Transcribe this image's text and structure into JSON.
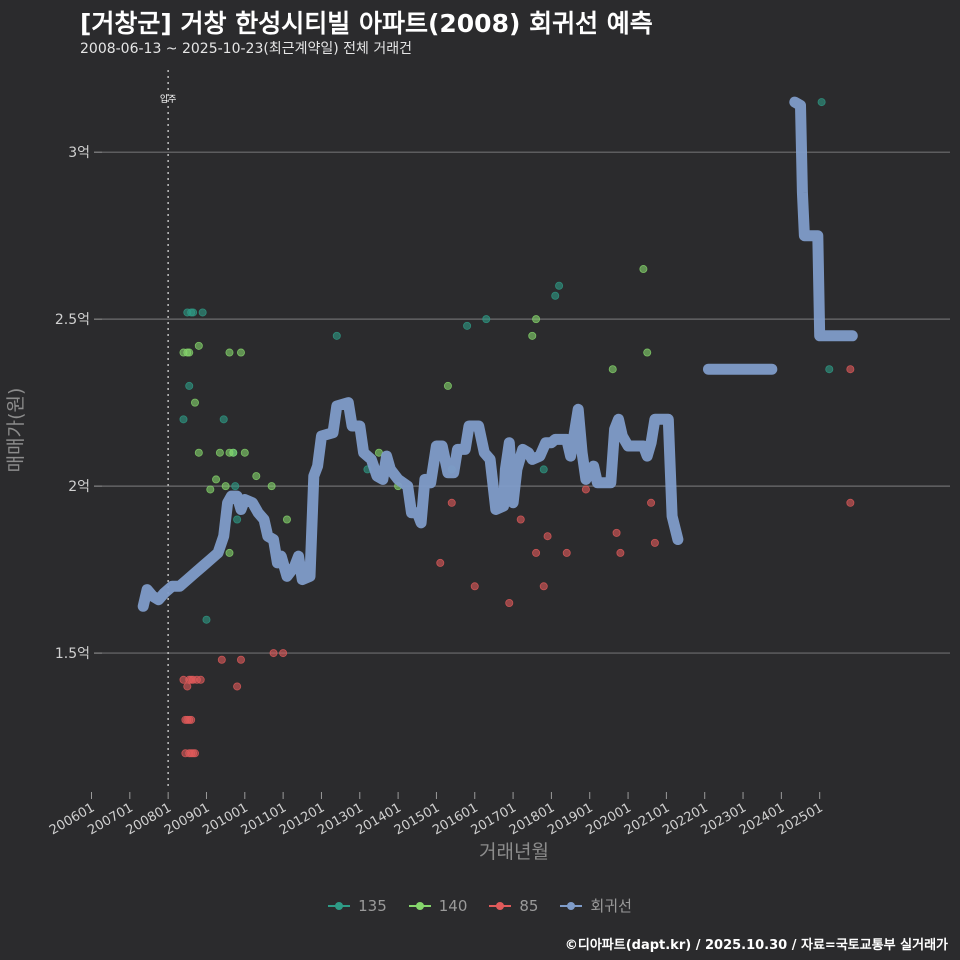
{
  "title": "[거창군] 거창 한성시티빌 아파트(2008) 회귀선 예측",
  "subtitle": "2008-06-13 ~ 2025-10-23(최근계약일) 전체 거래건",
  "credit": "©디아파트(dapt.kr) / 2025.10.30 / 자료=국토교통부 실거래가",
  "chart_data": {
    "type": "scatter",
    "title": "[거창군] 거창 한성시티빌 아파트(2008) 회귀선 예측",
    "xlabel": "거래년월",
    "ylabel": "매매가(원)",
    "x_ticks": [
      "200601",
      "200701",
      "200801",
      "200901",
      "201001",
      "201101",
      "201201",
      "201301",
      "201401",
      "201501",
      "201601",
      "201701",
      "201801",
      "201901",
      "202001",
      "202101",
      "202201",
      "202301",
      "202401",
      "202501"
    ],
    "y_ticks": [
      {
        "value": 1.5,
        "label": "1.5억"
      },
      {
        "value": 2.0,
        "label": "2억"
      },
      {
        "value": 2.5,
        "label": "2.5억"
      },
      {
        "value": 3.0,
        "label": "3억"
      }
    ],
    "xlim": [
      2005.7,
      2028.4
    ],
    "ylim": [
      1.09,
      3.27
    ],
    "vline": {
      "x": 2008.0,
      "label": "입주"
    },
    "colors": {
      "135": "#2e9b86",
      "140": "#86d66c",
      "85": "#e05a5a",
      "회귀선": "#7f9cc9"
    },
    "series": [
      {
        "name": "135",
        "points": [
          [
            2008.4,
            2.2
          ],
          [
            2008.5,
            2.52
          ],
          [
            2008.55,
            2.3
          ],
          [
            2008.6,
            2.52
          ],
          [
            2008.65,
            2.52
          ],
          [
            2008.9,
            2.52
          ],
          [
            2009.0,
            1.6
          ],
          [
            2009.45,
            2.2
          ],
          [
            2009.7,
            2.1
          ],
          [
            2009.8,
            1.9
          ],
          [
            2009.75,
            2.0
          ],
          [
            2012.4,
            2.45
          ],
          [
            2013.2,
            2.05
          ],
          [
            2015.4,
            2.05
          ],
          [
            2015.8,
            2.48
          ],
          [
            2016.3,
            2.5
          ],
          [
            2017.8,
            2.05
          ],
          [
            2018.1,
            2.57
          ],
          [
            2018.2,
            2.6
          ],
          [
            2025.25,
            2.35
          ],
          [
            2025.05,
            3.15
          ]
        ]
      },
      {
        "name": "140",
        "points": [
          [
            2008.4,
            2.4
          ],
          [
            2008.5,
            2.4
          ],
          [
            2008.55,
            2.4
          ],
          [
            2008.8,
            2.42
          ],
          [
            2008.7,
            2.25
          ],
          [
            2008.8,
            2.1
          ],
          [
            2009.1,
            1.99
          ],
          [
            2009.25,
            2.02
          ],
          [
            2009.35,
            2.1
          ],
          [
            2009.5,
            2.0
          ],
          [
            2009.6,
            2.1
          ],
          [
            2009.6,
            1.8
          ],
          [
            2009.6,
            2.4
          ],
          [
            2009.7,
            2.1
          ],
          [
            2009.9,
            2.4
          ],
          [
            2010.0,
            2.1
          ],
          [
            2010.3,
            2.03
          ],
          [
            2010.7,
            2.0
          ],
          [
            2011.1,
            1.9
          ],
          [
            2013.5,
            2.1
          ],
          [
            2014.0,
            2.0
          ],
          [
            2015.3,
            2.3
          ],
          [
            2017.5,
            2.45
          ],
          [
            2017.6,
            2.5
          ],
          [
            2019.6,
            2.35
          ],
          [
            2020.4,
            2.65
          ],
          [
            2020.5,
            2.4
          ]
        ]
      },
      {
        "name": "85",
        "points": [
          [
            2008.4,
            1.42
          ],
          [
            2008.45,
            1.3
          ],
          [
            2008.5,
            1.3
          ],
          [
            2008.55,
            1.3
          ],
          [
            2008.6,
            1.3
          ],
          [
            2008.45,
            1.2
          ],
          [
            2008.55,
            1.2
          ],
          [
            2008.6,
            1.2
          ],
          [
            2008.65,
            1.2
          ],
          [
            2008.7,
            1.2
          ],
          [
            2008.5,
            1.4
          ],
          [
            2008.55,
            1.42
          ],
          [
            2008.6,
            1.42
          ],
          [
            2008.65,
            1.42
          ],
          [
            2008.75,
            1.42
          ],
          [
            2008.85,
            1.42
          ],
          [
            2009.4,
            1.48
          ],
          [
            2009.8,
            1.4
          ],
          [
            2009.9,
            1.48
          ],
          [
            2010.75,
            1.5
          ],
          [
            2011.0,
            1.5
          ],
          [
            2015.1,
            1.77
          ],
          [
            2015.4,
            1.95
          ],
          [
            2016.0,
            1.7
          ],
          [
            2016.9,
            1.65
          ],
          [
            2017.2,
            1.9
          ],
          [
            2017.6,
            1.8
          ],
          [
            2017.8,
            1.7
          ],
          [
            2017.9,
            1.85
          ],
          [
            2018.4,
            1.8
          ],
          [
            2018.9,
            1.99
          ],
          [
            2019.7,
            1.86
          ],
          [
            2019.8,
            1.8
          ],
          [
            2020.6,
            1.95
          ],
          [
            2020.7,
            1.83
          ],
          [
            2025.8,
            2.35
          ],
          [
            2025.8,
            1.95
          ]
        ]
      }
    ],
    "regression": {
      "name": "회귀선",
      "segments": [
        [
          [
            2007.35,
            1.64
          ],
          [
            2007.45,
            1.69
          ],
          [
            2007.6,
            1.67
          ],
          [
            2007.75,
            1.66
          ],
          [
            2007.9,
            1.68
          ],
          [
            2008.1,
            1.7
          ],
          [
            2008.3,
            1.7
          ],
          [
            2008.5,
            1.72
          ],
          [
            2008.7,
            1.74
          ],
          [
            2008.9,
            1.76
          ],
          [
            2009.1,
            1.78
          ],
          [
            2009.3,
            1.8
          ],
          [
            2009.45,
            1.85
          ],
          [
            2009.55,
            1.95
          ],
          [
            2009.65,
            1.97
          ],
          [
            2009.8,
            1.97
          ],
          [
            2009.9,
            1.93
          ],
          [
            2010.0,
            1.96
          ],
          [
            2010.2,
            1.95
          ],
          [
            2010.35,
            1.92
          ],
          [
            2010.5,
            1.9
          ],
          [
            2010.6,
            1.85
          ],
          [
            2010.75,
            1.84
          ],
          [
            2010.85,
            1.77
          ],
          [
            2010.95,
            1.79
          ],
          [
            2011.1,
            1.73
          ],
          [
            2011.3,
            1.76
          ],
          [
            2011.4,
            1.79
          ],
          [
            2011.5,
            1.72
          ],
          [
            2011.7,
            1.73
          ],
          [
            2011.8,
            2.03
          ],
          [
            2011.9,
            2.06
          ],
          [
            2012.0,
            2.15
          ],
          [
            2012.3,
            2.16
          ],
          [
            2012.4,
            2.24
          ],
          [
            2012.7,
            2.25
          ],
          [
            2012.8,
            2.18
          ],
          [
            2013.0,
            2.18
          ],
          [
            2013.1,
            2.1
          ],
          [
            2013.3,
            2.08
          ],
          [
            2013.45,
            2.03
          ],
          [
            2013.6,
            2.02
          ],
          [
            2013.7,
            2.09
          ],
          [
            2013.8,
            2.05
          ],
          [
            2014.0,
            2.02
          ],
          [
            2014.25,
            2.0
          ],
          [
            2014.35,
            1.92
          ],
          [
            2014.5,
            1.92
          ],
          [
            2014.6,
            1.89
          ],
          [
            2014.7,
            2.02
          ],
          [
            2014.85,
            2.01
          ],
          [
            2015.0,
            2.12
          ],
          [
            2015.15,
            2.12
          ],
          [
            2015.3,
            2.04
          ],
          [
            2015.45,
            2.04
          ],
          [
            2015.55,
            2.11
          ],
          [
            2015.75,
            2.11
          ],
          [
            2015.85,
            2.18
          ],
          [
            2016.1,
            2.18
          ],
          [
            2016.25,
            2.1
          ],
          [
            2016.4,
            2.08
          ],
          [
            2016.55,
            1.93
          ],
          [
            2016.75,
            1.94
          ],
          [
            2016.8,
            2.05
          ],
          [
            2016.9,
            2.13
          ],
          [
            2017.0,
            1.95
          ],
          [
            2017.1,
            2.05
          ],
          [
            2017.25,
            2.11
          ],
          [
            2017.4,
            2.1
          ],
          [
            2017.5,
            2.08
          ],
          [
            2017.7,
            2.09
          ],
          [
            2017.85,
            2.13
          ],
          [
            2018.0,
            2.13
          ],
          [
            2018.1,
            2.14
          ],
          [
            2018.4,
            2.14
          ],
          [
            2018.5,
            2.09
          ],
          [
            2018.6,
            2.16
          ],
          [
            2018.7,
            2.23
          ],
          [
            2018.8,
            2.1
          ],
          [
            2018.9,
            2.02
          ],
          [
            2019.1,
            2.06
          ],
          [
            2019.2,
            2.01
          ],
          [
            2019.4,
            2.01
          ],
          [
            2019.55,
            2.01
          ],
          [
            2019.65,
            2.17
          ],
          [
            2019.75,
            2.2
          ],
          [
            2019.85,
            2.15
          ],
          [
            2020.0,
            2.12
          ],
          [
            2020.4,
            2.12
          ],
          [
            2020.5,
            2.09
          ],
          [
            2020.6,
            2.13
          ],
          [
            2020.7,
            2.2
          ],
          [
            2021.05,
            2.2
          ],
          [
            2021.15,
            1.91
          ],
          [
            2021.3,
            1.84
          ]
        ],
        [
          [
            2022.1,
            2.35
          ],
          [
            2023.75,
            2.35
          ]
        ],
        [
          [
            2024.35,
            3.15
          ],
          [
            2024.5,
            3.14
          ],
          [
            2024.55,
            2.88
          ],
          [
            2024.6,
            2.75
          ],
          [
            2024.95,
            2.75
          ],
          [
            2025.0,
            2.45
          ],
          [
            2025.85,
            2.45
          ]
        ]
      ]
    },
    "legend": [
      "135",
      "140",
      "85",
      "회귀선"
    ],
    "grid": true
  }
}
